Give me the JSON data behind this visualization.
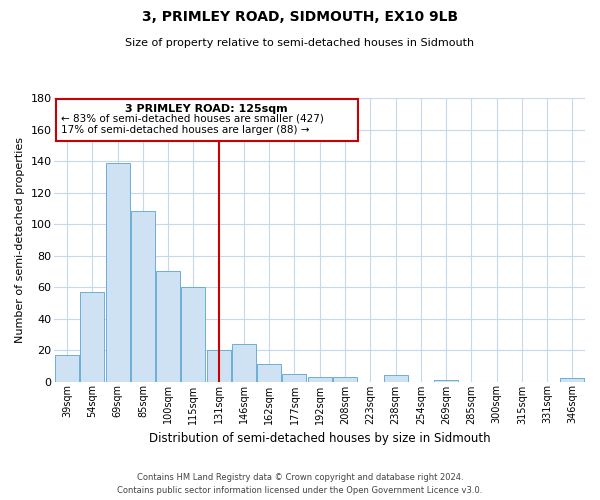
{
  "title": "3, PRIMLEY ROAD, SIDMOUTH, EX10 9LB",
  "subtitle": "Size of property relative to semi-detached houses in Sidmouth",
  "xlabel": "Distribution of semi-detached houses by size in Sidmouth",
  "ylabel": "Number of semi-detached properties",
  "bin_labels": [
    "39sqm",
    "54sqm",
    "69sqm",
    "85sqm",
    "100sqm",
    "115sqm",
    "131sqm",
    "146sqm",
    "162sqm",
    "177sqm",
    "192sqm",
    "208sqm",
    "223sqm",
    "238sqm",
    "254sqm",
    "269sqm",
    "285sqm",
    "300sqm",
    "315sqm",
    "331sqm",
    "346sqm"
  ],
  "bar_heights": [
    17,
    57,
    139,
    108,
    70,
    60,
    20,
    24,
    11,
    5,
    3,
    3,
    0,
    4,
    0,
    1,
    0,
    0,
    0,
    0,
    2
  ],
  "bar_color": "#cfe2f3",
  "bar_edge_color": "#6baed6",
  "highlight_bin_index": 6,
  "highlight_line_color": "#cc0000",
  "ylim": [
    0,
    180
  ],
  "yticks": [
    0,
    20,
    40,
    60,
    80,
    100,
    120,
    140,
    160,
    180
  ],
  "annotation_title": "3 PRIMLEY ROAD: 125sqm",
  "annotation_line1": "← 83% of semi-detached houses are smaller (427)",
  "annotation_line2": "17% of semi-detached houses are larger (88) →",
  "annotation_box_color": "#ffffff",
  "annotation_box_edge": "#cc0000",
  "footer_line1": "Contains HM Land Registry data © Crown copyright and database right 2024.",
  "footer_line2": "Contains public sector information licensed under the Open Government Licence v3.0.",
  "background_color": "#ffffff",
  "grid_color": "#c8d8ec"
}
